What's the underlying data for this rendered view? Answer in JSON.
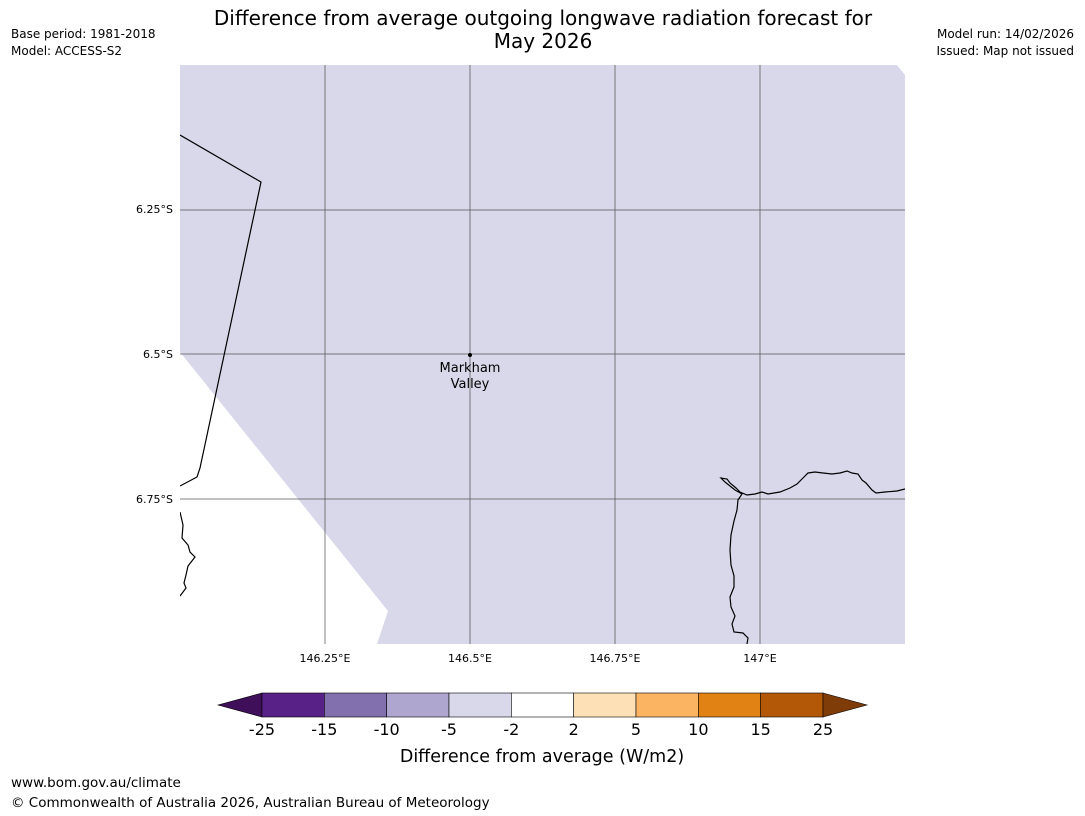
{
  "title_line1": "Difference from average outgoing longwave radiation forecast for",
  "title_line2": "May 2026",
  "meta_left": {
    "base_period": "Base period: 1981-2018",
    "model": "Model: ACCESS-S2"
  },
  "meta_right": {
    "model_run": "Model run: 14/02/2026",
    "issued": "Issued: Map not issued"
  },
  "lat_labels": [
    "6.25°S",
    "6.5°S",
    "6.75°S"
  ],
  "lon_labels": [
    "146.25°E",
    "146.5°E",
    "146.75°E",
    "147°E"
  ],
  "place": {
    "name_line1": "Markham",
    "name_line2": "Valley"
  },
  "map_fill_category": "-5 to -2",
  "colorbar": {
    "label": "Difference from average (W/m2)",
    "ticks": [
      "-25",
      "-15",
      "-10",
      "-5",
      "-2",
      "2",
      "5",
      "10",
      "15",
      "25"
    ],
    "colors": {
      "under": "#3f0f5a",
      "bins": [
        "#582188",
        "#8170ad",
        "#aea6cf",
        "#d8d8ea",
        "#ffffff",
        "#fde0b6",
        "#fbb562",
        "#e08214",
        "#b35806"
      ],
      "over": "#7f3b08"
    }
  },
  "footer": {
    "url": "www.bom.gov.au/climate",
    "copyright": "© Commonwealth of Australia 2026, Australian Bureau of Meteorology"
  }
}
